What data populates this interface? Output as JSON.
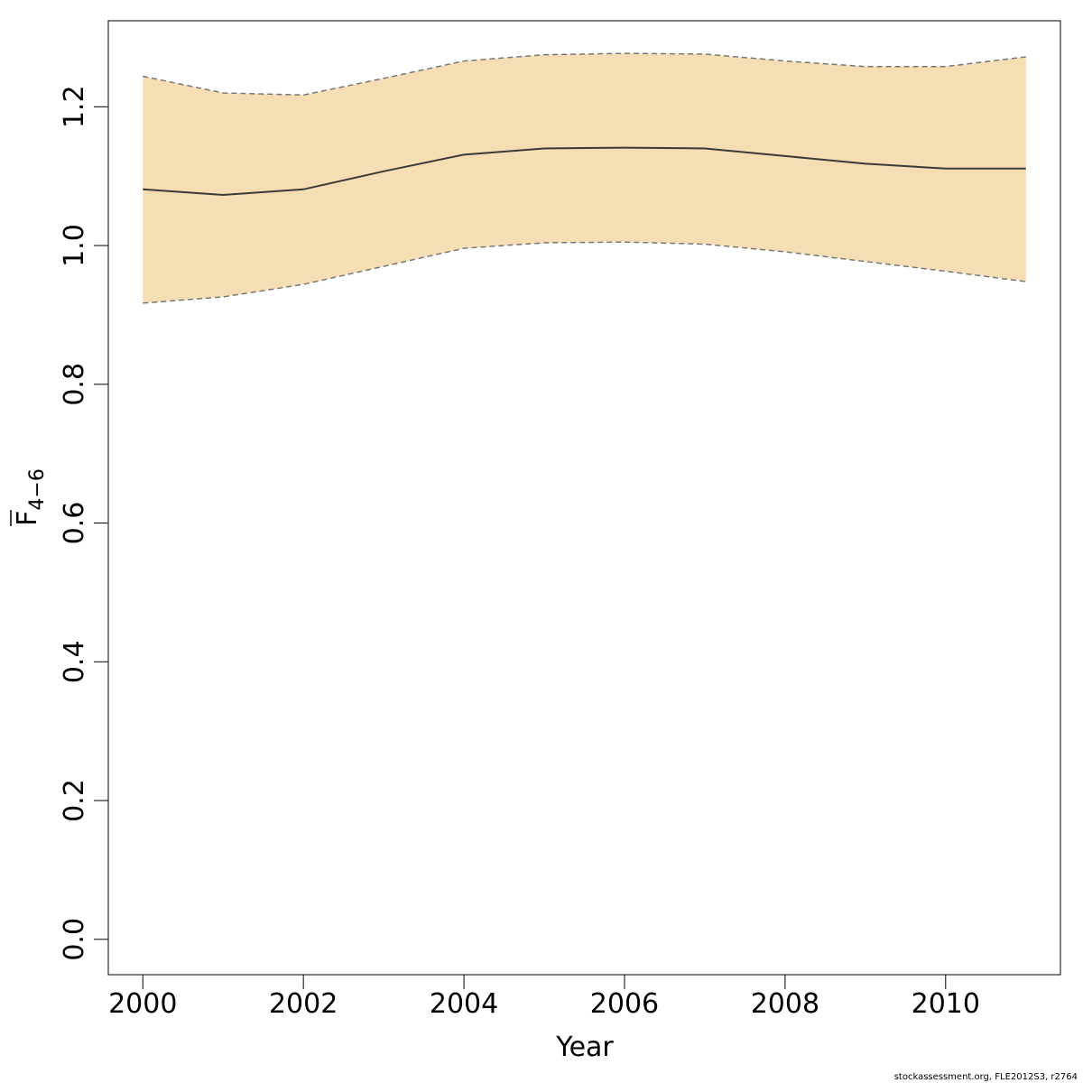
{
  "chart_data": {
    "type": "line",
    "title": "",
    "xlabel": "Year",
    "ylabel": {
      "base": "F",
      "subscript": "4−6",
      "overbar": true
    },
    "x": [
      2000,
      2001,
      2002,
      2003,
      2004,
      2005,
      2006,
      2007,
      2008,
      2009,
      2010,
      2011
    ],
    "series": [
      {
        "values": [
          1.081,
          1.073,
          1.081,
          1.107,
          1.131,
          1.14,
          1.141,
          1.14,
          1.129,
          1.118,
          1.111,
          1.111
        ],
        "style": "solid",
        "color": "#3a3a3a"
      },
      {
        "values": [
          1.244,
          1.22,
          1.217,
          1.241,
          1.266,
          1.275,
          1.277,
          1.276,
          1.266,
          1.258,
          1.258,
          1.272
        ],
        "style": "dashed",
        "color": "#777777"
      },
      {
        "values": [
          0.917,
          0.926,
          0.944,
          0.97,
          0.996,
          1.004,
          1.005,
          1.002,
          0.991,
          0.977,
          0.963,
          0.948
        ],
        "style": "dashed",
        "color": "#777777"
      }
    ],
    "band_color": "#f5deb3",
    "xlim": [
      1999.57,
      2011.43
    ],
    "ylim": [
      -0.051,
      1.324
    ],
    "xticks": [
      "2000",
      "2002",
      "2004",
      "2006",
      "2008",
      "2010"
    ],
    "yticks": [
      "0.0",
      "0.2",
      "0.4",
      "0.6",
      "0.8",
      "1.0",
      "1.2"
    ],
    "grid": false,
    "legend": "none"
  },
  "footer": "stockassessment.org, FLE2012S3, r2764"
}
